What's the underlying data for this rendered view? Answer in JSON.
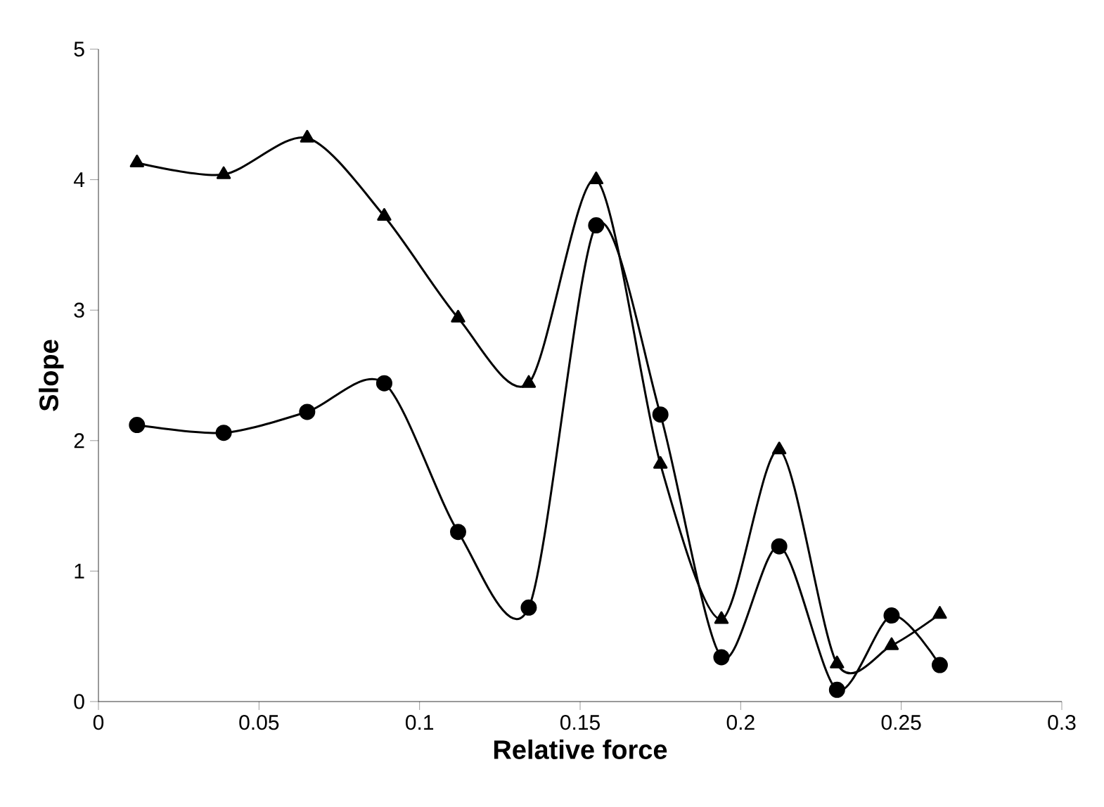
{
  "chart_data": {
    "type": "line",
    "xlabel": "Relative force",
    "ylabel": "Slope",
    "xlim": [
      0,
      0.3
    ],
    "ylim": [
      0,
      5
    ],
    "xticks": [
      0,
      0.05,
      0.1,
      0.15,
      0.2,
      0.25,
      0.3
    ],
    "yticks": [
      0,
      1,
      2,
      3,
      4,
      5
    ],
    "line_style": "solid",
    "series": [
      {
        "color": "#000000",
        "marker": "triangle",
        "x": [
          0.012,
          0.039,
          0.065,
          0.089,
          0.112,
          0.134,
          0.155,
          0.175,
          0.194,
          0.212,
          0.23,
          0.247,
          0.262
        ],
        "values": [
          4.13,
          4.04,
          4.32,
          3.72,
          2.94,
          2.44,
          4.0,
          1.82,
          0.63,
          1.93,
          0.29,
          0.43,
          0.67
        ]
      },
      {
        "color": "#000000",
        "marker": "circle",
        "x": [
          0.012,
          0.039,
          0.065,
          0.089,
          0.112,
          0.134,
          0.155,
          0.175,
          0.194,
          0.212,
          0.23,
          0.247,
          0.262
        ],
        "values": [
          2.12,
          2.06,
          2.22,
          2.44,
          1.3,
          0.72,
          3.65,
          2.2,
          0.34,
          1.19,
          0.09,
          0.66,
          0.28
        ]
      }
    ]
  }
}
